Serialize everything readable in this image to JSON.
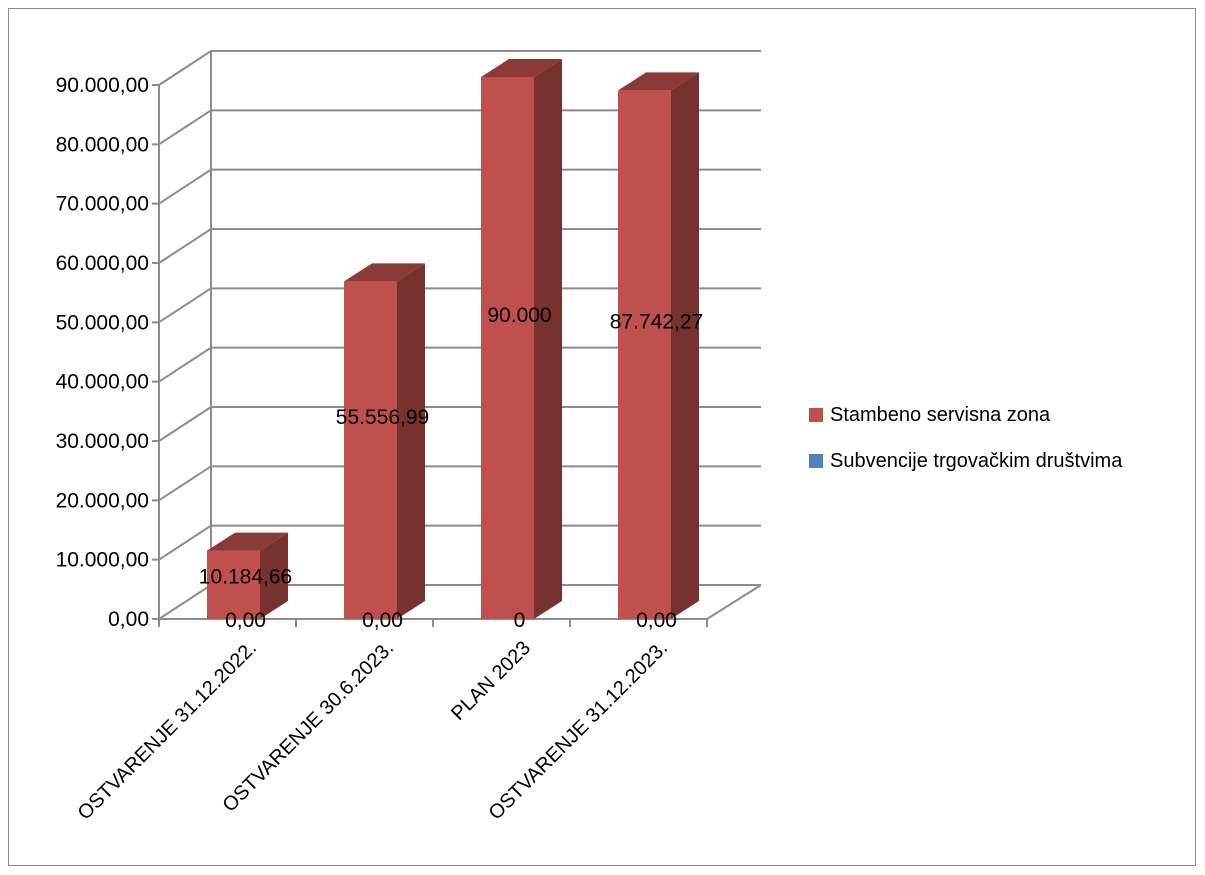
{
  "chart_data": {
    "type": "bar",
    "style": "3d-column",
    "categories": [
      "OSTVARENJE 31.12.2022.",
      "OSTVARENJE 30.6.2023.",
      "PLAN 2023",
      "OSTVARENJE 31.12.2023."
    ],
    "series": [
      {
        "name": "Stambeno servisna zona",
        "color": "#c0504d",
        "values": [
          10184.66,
          55556.99,
          90000,
          87742.27
        ],
        "labels": [
          "10.184,66",
          "55.556,99",
          "90.000",
          "87.742,27"
        ]
      },
      {
        "name": "Subvencije trgovačkim društvima",
        "color": "#4f81bd",
        "values": [
          0,
          0,
          0,
          0
        ],
        "labels": [
          "0,00",
          "0,00",
          "0",
          "0,00"
        ]
      }
    ],
    "ylim": [
      0,
      90000
    ],
    "yticks": [
      0,
      10000,
      20000,
      30000,
      40000,
      50000,
      60000,
      70000,
      80000,
      90000
    ],
    "ytick_labels": [
      "0,00",
      "10.000,00",
      "20.000,00",
      "30.000,00",
      "40.000,00",
      "50.000,00",
      "60.000,00",
      "70.000,00",
      "80.000,00",
      "90.000,00"
    ],
    "grid": true,
    "legend_position": "right"
  }
}
